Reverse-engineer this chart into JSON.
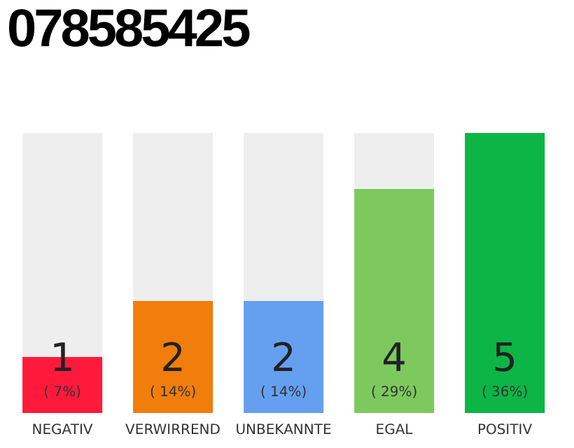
{
  "chart_data": {
    "type": "bar",
    "title": "078585425",
    "categories": [
      "NEGATIV",
      "VERWIRREND",
      "UNBEKANNTE",
      "EGAL",
      "POSITIV"
    ],
    "values": [
      1,
      2,
      2,
      4,
      5
    ],
    "colors": [
      "#ff1a3c",
      "#f07d0c",
      "#659ff0",
      "#7dc95e",
      "#0cb546"
    ],
    "value_labels": [
      "1\n( 7%)",
      "2\n( 14%)",
      "2\n( 14%)",
      "4\n( 29%)",
      "5\n( 36%)"
    ],
    "ylim": [
      0,
      5
    ],
    "tick_labels": "x",
    "grid": false,
    "legend": false
  }
}
